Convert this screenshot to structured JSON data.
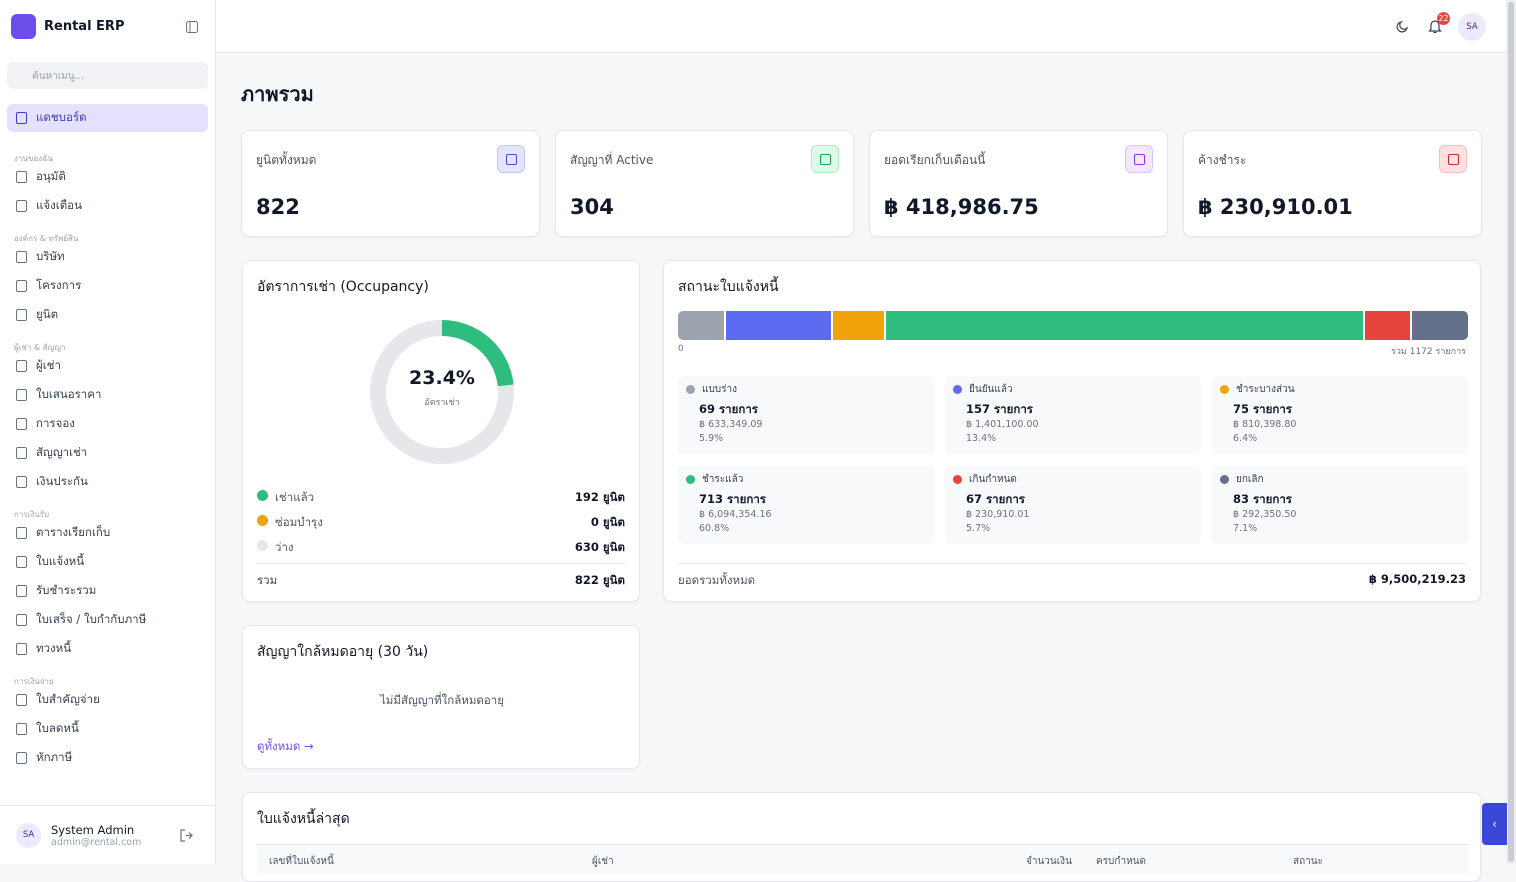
{
  "sidebar": {
    "brand": "Rental ERP",
    "search_placeholder": "ค้นหาเมนู...",
    "active_item": "แดชบอร์ด",
    "groups": [
      {
        "label": "งานของฉัน",
        "items": [
          "อนุมัติ",
          "แจ้งเตือน"
        ]
      },
      {
        "label": "องค์กร & ทรัพย์สิน",
        "items": [
          "บริษัท",
          "โครงการ",
          "ยูนิต"
        ]
      },
      {
        "label": "ผู้เช่า & สัญญา",
        "items": [
          "ผู้เช่า",
          "ใบเสนอราคา",
          "การจอง",
          "สัญญาเช่า",
          "เงินประกัน"
        ]
      },
      {
        "label": "การเงินรับ",
        "items": [
          "ตารางเรียกเก็บ",
          "ใบแจ้งหนี้",
          "รับชำระรวม",
          "ใบเสร็จ / ใบกำกับภาษี",
          "ทวงหนี้"
        ]
      },
      {
        "label": "การเงินจ่าย",
        "items": [
          "ใบสำคัญจ่าย",
          "ใบลดหนี้",
          "หักภาษี"
        ]
      }
    ],
    "user": {
      "initials": "SA",
      "name": "System Admin",
      "email": "admin@rental.com"
    }
  },
  "header": {
    "notification_count": "22",
    "avatar": "SA"
  },
  "page_title": "ภาพรวม",
  "stat_cards": [
    {
      "label": "ยูนิตทั้งหมด",
      "value": "822"
    },
    {
      "label": "สัญญาที่ Active",
      "value": "304"
    },
    {
      "label": "ยอดเรียกเก็บเดือนนี้",
      "value": "฿ 418,986.75"
    },
    {
      "label": "ค้างชำระ",
      "value": "฿ 230,910.01"
    }
  ],
  "occupancy": {
    "title": "อัตราการเช่า (Occupancy)",
    "rate_label": "23.4%",
    "rate_caption": "อัตราเช่า",
    "rows": [
      {
        "label": "เช่าแล้ว",
        "units": 192,
        "units_label": "192 ยูนิต",
        "color": "#2ebd7e"
      },
      {
        "label": "ซ่อมบำรุง",
        "units": 0,
        "units_label": "0 ยูนิต",
        "color": "#f0a30a"
      },
      {
        "label": "ว่าง",
        "units": 630,
        "units_label": "630 ยูนิต",
        "color": "#e5e7eb"
      }
    ],
    "total_label": "รวม",
    "total_value": "822 ยูนิต"
  },
  "invoice_status": {
    "title": "สถานะใบแจ้งหนี้",
    "axis_start": "0",
    "axis_total": "รวม 1172 รายการ",
    "statuses": [
      {
        "name": "แบบร่าง",
        "count": 69,
        "count_label": "69 รายการ",
        "amount": "฿ 633,349.09",
        "share": "5.9%",
        "color": "#9ca3af"
      },
      {
        "name": "ยืนยันแล้ว",
        "count": 157,
        "count_label": "157 รายการ",
        "amount": "฿ 1,401,100.00",
        "share": "13.4%",
        "color": "#5b6cf0"
      },
      {
        "name": "ชำระบางส่วน",
        "count": 75,
        "count_label": "75 รายการ",
        "amount": "฿ 810,398.80",
        "share": "6.4%",
        "color": "#f0a30a"
      },
      {
        "name": "ชำระแล้ว",
        "count": 713,
        "count_label": "713 รายการ",
        "amount": "฿ 6,094,354.16",
        "share": "60.8%",
        "color": "#2ebd7e"
      },
      {
        "name": "เกินกำหนด",
        "count": 67,
        "count_label": "67 รายการ",
        "amount": "฿ 230,910.01",
        "share": "5.7%",
        "color": "#e5453d"
      },
      {
        "name": "ยกเลิก",
        "count": 83,
        "count_label": "83 รายการ",
        "amount": "฿ 292,350.50",
        "share": "7.1%",
        "color": "#64708a"
      }
    ],
    "grand_total_label": "ยอดรวมทั้งหมด",
    "grand_total": "฿ 9,500,219.23"
  },
  "expiring_contracts": {
    "title": "สัญญาใกล้หมดอายุ (30 วัน)",
    "empty_message": "ไม่มีสัญญาที่ใกล้หมดอายุ",
    "link": "ดูทั้งหมด →"
  },
  "latest_invoices": {
    "title": "ใบแจ้งหนี้ล่าสุด",
    "columns": [
      "เลขที่ใบแจ้งหนี้",
      "ผู้เช่า",
      "จำนวนเงิน",
      "ครบกำหนด",
      "สถานะ"
    ]
  }
}
